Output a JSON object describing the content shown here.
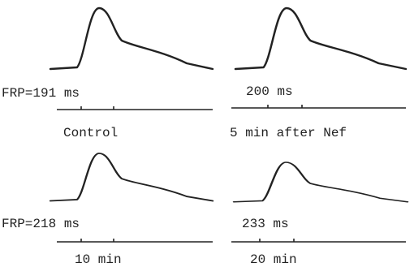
{
  "panels": [
    {
      "value_label": "FRP=191 ms",
      "caption": "Control"
    },
    {
      "value_label": "200 ms",
      "caption": "5 min after Nef"
    },
    {
      "value_label": "FRP=218 ms",
      "caption": "10 min"
    },
    {
      "value_label": "233 ms",
      "caption": "20 min"
    }
  ]
}
